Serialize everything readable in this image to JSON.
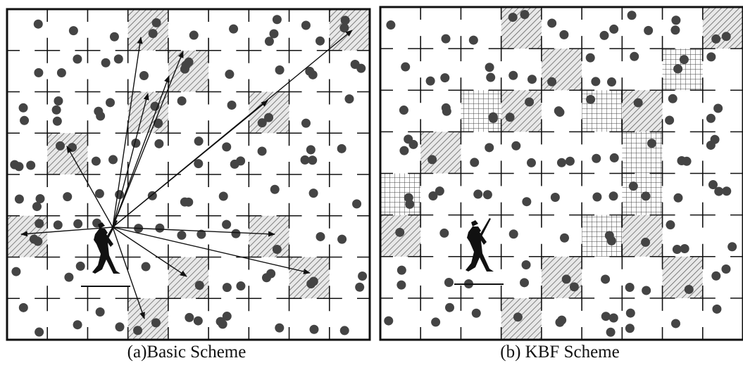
{
  "captions": {
    "a": "(a)Basic Scheme",
    "b": "(b) KBF Scheme"
  }
}
